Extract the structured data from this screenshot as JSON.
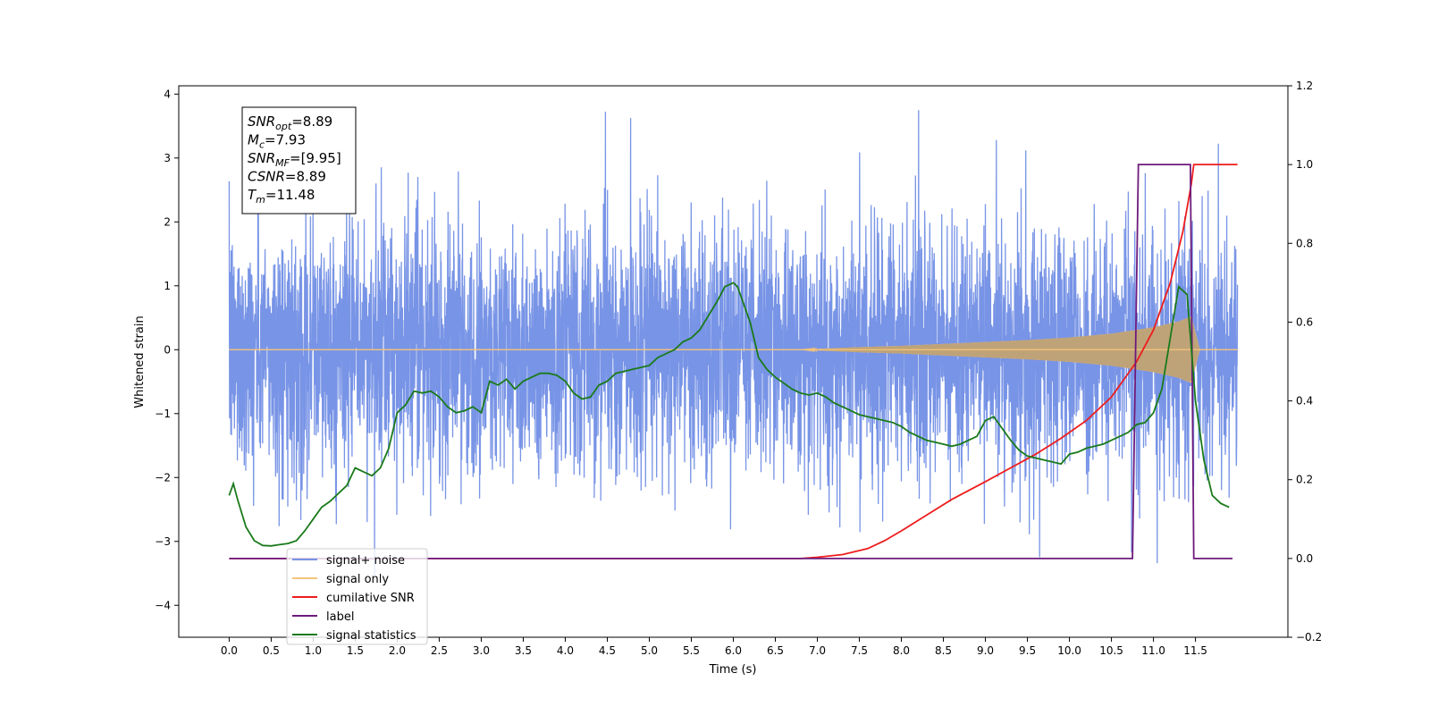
{
  "chart_data": {
    "type": "line",
    "xlabel": "Time (s)",
    "ylabel_left": "Whitened strain",
    "xlim": [
      -0.6,
      12.6
    ],
    "ylim_left": [
      -4.5,
      4.13
    ],
    "ylim_right": [
      -0.2,
      1.2
    ],
    "x_ticks": [
      0.0,
      0.5,
      1.0,
      1.5,
      2.0,
      2.5,
      3.0,
      3.5,
      4.0,
      4.5,
      5.0,
      5.5,
      6.0,
      6.5,
      7.0,
      7.5,
      8.0,
      8.5,
      9.0,
      9.5,
      10.0,
      10.5,
      11.0,
      11.5
    ],
    "y_ticks_left": [
      -4,
      -3,
      -2,
      -1,
      0,
      1,
      2,
      3,
      4
    ],
    "y_ticks_right": [
      -0.2,
      0.0,
      0.2,
      0.4,
      0.6,
      0.8,
      1.0,
      1.2
    ],
    "x_tick_labels": [
      "0.0",
      "0.5",
      "1.0",
      "1.5",
      "2.0",
      "2.5",
      "3.0",
      "3.5",
      "4.0",
      "4.5",
      "5.0",
      "5.5",
      "6.0",
      "6.5",
      "7.0",
      "7.5",
      "8.0",
      "8.5",
      "9.0",
      "9.5",
      "10.0",
      "10.5",
      "11.0",
      "11.5"
    ],
    "y_tick_labels_left": [
      "−4",
      "−3",
      "−2",
      "−1",
      "0",
      "1",
      "2",
      "3",
      "4"
    ],
    "y_tick_labels_right": [
      "−0.2",
      "0.0",
      "0.2",
      "0.4",
      "0.6",
      "0.8",
      "1.0",
      "1.2"
    ],
    "grid": false,
    "legend_placement": "lower-left",
    "annotation_box": {
      "lines": [
        {
          "base": "SNR",
          "sub": "opt",
          "rest": "=8.89"
        },
        {
          "base": "M",
          "sub": "c",
          "rest": "=7.93"
        },
        {
          "base": "SNR",
          "sub": "MF",
          "rest": "=[9.95]"
        },
        {
          "base": "CSNR",
          "sub": "",
          "rest": "=8.89"
        },
        {
          "base": "T",
          "sub": "m",
          "rest": "=11.48"
        }
      ]
    },
    "series": [
      {
        "name": "signal+ noise",
        "axis": "left",
        "color": "#7894e6",
        "kind": "noise",
        "x_range": [
          0.0,
          12.0
        ],
        "typical_envelope": [
          -2.2,
          2.3
        ],
        "max": 3.75,
        "min": -4.1
      },
      {
        "name": "signal only",
        "axis": "left",
        "color": "#f5c47a",
        "kind": "chirp",
        "x_range": [
          0.0,
          12.0
        ],
        "envelope": {
          "x": [
            0.0,
            6.8,
            7.5,
            8.0,
            8.5,
            9.0,
            9.5,
            10.0,
            10.5,
            11.0,
            11.3,
            11.45,
            11.55,
            12.0
          ],
          "amp": [
            0.0,
            0.0,
            0.04,
            0.06,
            0.09,
            0.12,
            0.15,
            0.19,
            0.25,
            0.35,
            0.44,
            0.52,
            0.0,
            0.0
          ]
        }
      },
      {
        "name": "cumilative SNR",
        "axis": "right",
        "color": "#ee1c1c",
        "x": [
          0.0,
          6.8,
          7.0,
          7.3,
          7.6,
          7.8,
          8.0,
          8.3,
          8.6,
          9.0,
          9.3,
          9.6,
          9.9,
          10.2,
          10.5,
          10.8,
          11.0,
          11.2,
          11.35,
          11.45,
          11.48,
          12.0
        ],
        "values": [
          0.0,
          0.0,
          0.003,
          0.01,
          0.025,
          0.045,
          0.07,
          0.11,
          0.15,
          0.195,
          0.23,
          0.265,
          0.305,
          0.35,
          0.41,
          0.5,
          0.58,
          0.7,
          0.83,
          0.95,
          1.0,
          1.0
        ]
      },
      {
        "name": "label",
        "axis": "right",
        "color": "#6d1a7b",
        "x": [
          0.0,
          10.75,
          10.82,
          11.44,
          11.48,
          11.94
        ],
        "values": [
          0.0,
          0.0,
          1.0,
          1.0,
          0.0,
          0.0
        ]
      },
      {
        "name": "signal statistics",
        "axis": "right",
        "color": "#1a7a1a",
        "x": [
          0.0,
          0.05,
          0.1,
          0.2,
          0.3,
          0.4,
          0.5,
          0.6,
          0.7,
          0.8,
          0.9,
          1.0,
          1.1,
          1.2,
          1.3,
          1.4,
          1.5,
          1.6,
          1.7,
          1.8,
          1.9,
          2.0,
          2.1,
          2.2,
          2.3,
          2.4,
          2.5,
          2.6,
          2.7,
          2.8,
          2.9,
          3.0,
          3.1,
          3.2,
          3.3,
          3.4,
          3.5,
          3.6,
          3.7,
          3.8,
          3.9,
          4.0,
          4.1,
          4.2,
          4.3,
          4.4,
          4.5,
          4.6,
          4.7,
          4.8,
          4.9,
          5.0,
          5.1,
          5.2,
          5.3,
          5.4,
          5.5,
          5.6,
          5.7,
          5.8,
          5.9,
          6.0,
          6.05,
          6.1,
          6.2,
          6.3,
          6.4,
          6.5,
          6.6,
          6.7,
          6.8,
          6.9,
          7.0,
          7.1,
          7.2,
          7.3,
          7.4,
          7.5,
          7.6,
          7.7,
          7.8,
          7.9,
          8.0,
          8.1,
          8.2,
          8.3,
          8.4,
          8.5,
          8.6,
          8.7,
          8.8,
          8.9,
          9.0,
          9.1,
          9.2,
          9.3,
          9.4,
          9.5,
          9.6,
          9.7,
          9.8,
          9.9,
          10.0,
          10.1,
          10.2,
          10.3,
          10.4,
          10.5,
          10.6,
          10.7,
          10.8,
          10.9,
          11.0,
          11.1,
          11.2,
          11.3,
          11.4,
          11.5,
          11.6,
          11.7,
          11.8,
          11.9
        ],
        "values": [
          0.16,
          0.19,
          0.15,
          0.08,
          0.045,
          0.033,
          0.032,
          0.035,
          0.038,
          0.045,
          0.07,
          0.1,
          0.13,
          0.145,
          0.165,
          0.185,
          0.23,
          0.22,
          0.21,
          0.23,
          0.28,
          0.37,
          0.39,
          0.425,
          0.42,
          0.425,
          0.41,
          0.385,
          0.37,
          0.375,
          0.385,
          0.37,
          0.45,
          0.44,
          0.455,
          0.43,
          0.45,
          0.46,
          0.47,
          0.47,
          0.465,
          0.45,
          0.42,
          0.405,
          0.41,
          0.44,
          0.45,
          0.47,
          0.475,
          0.48,
          0.485,
          0.49,
          0.51,
          0.52,
          0.53,
          0.55,
          0.56,
          0.58,
          0.615,
          0.65,
          0.69,
          0.7,
          0.69,
          0.66,
          0.6,
          0.51,
          0.48,
          0.46,
          0.445,
          0.43,
          0.42,
          0.415,
          0.42,
          0.41,
          0.395,
          0.385,
          0.375,
          0.365,
          0.36,
          0.355,
          0.35,
          0.345,
          0.335,
          0.32,
          0.31,
          0.3,
          0.295,
          0.29,
          0.285,
          0.29,
          0.3,
          0.31,
          0.35,
          0.36,
          0.33,
          0.3,
          0.275,
          0.26,
          0.255,
          0.25,
          0.245,
          0.24,
          0.265,
          0.27,
          0.28,
          0.285,
          0.29,
          0.3,
          0.31,
          0.32,
          0.34,
          0.345,
          0.37,
          0.43,
          0.56,
          0.69,
          0.67,
          0.4,
          0.25,
          0.16,
          0.14,
          0.13
        ]
      }
    ]
  }
}
